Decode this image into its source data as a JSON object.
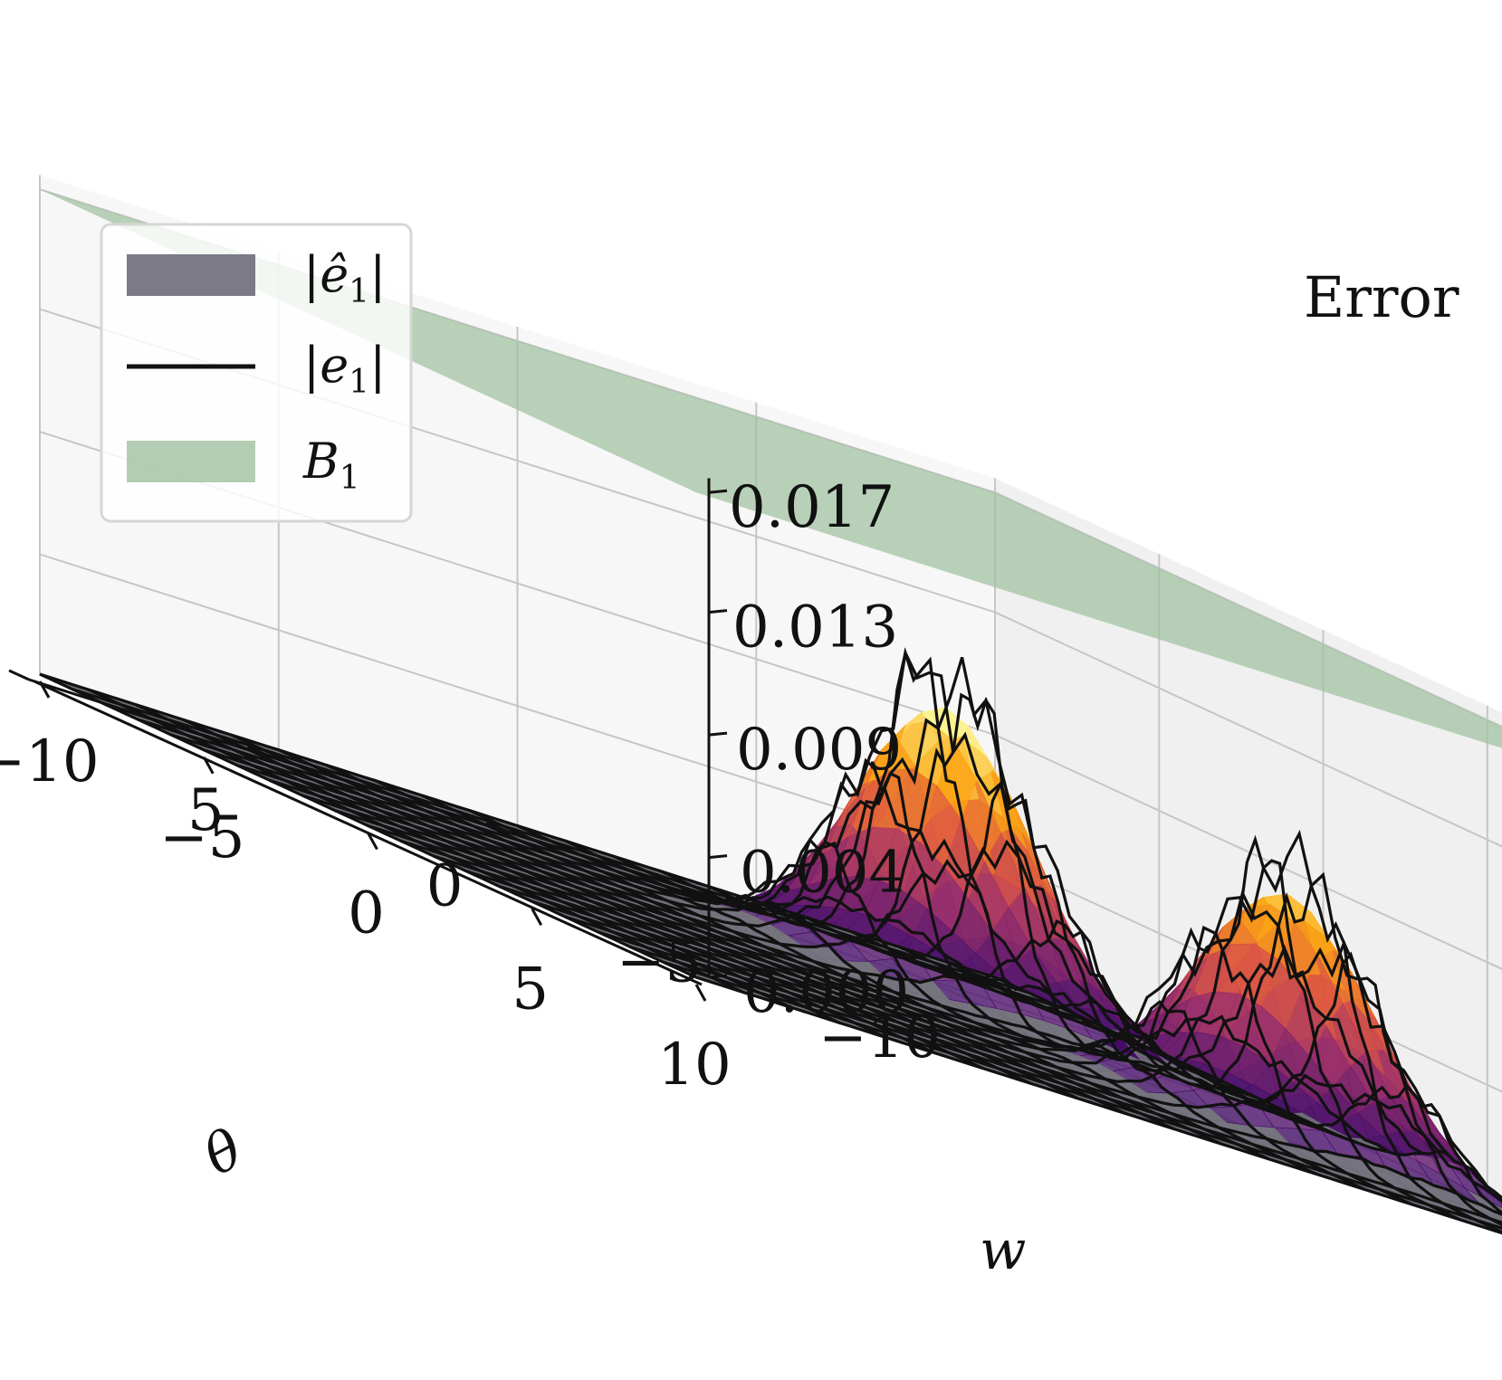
{
  "chart_data": {
    "type": "surface3d",
    "x_axis": {
      "label": "w",
      "ticks": [
        "−10",
        "−5",
        "0",
        "5",
        "10"
      ],
      "range": [
        -10,
        10
      ]
    },
    "y_axis": {
      "label": "θ",
      "ticks": [
        "−10",
        "−5",
        "0",
        "5",
        "10"
      ],
      "range": [
        -10,
        10
      ]
    },
    "z_axis": {
      "label": "Error",
      "ticks": [
        "0.000",
        "0.004",
        "0.009",
        "0.013",
        "0.017"
      ],
      "range": [
        0,
        0.0175
      ]
    },
    "grid": true,
    "legend": {
      "placement": "top-left",
      "entries": [
        {
          "label_main": "|ê",
          "label_sub": "1",
          "label_end": "|",
          "kind": "patch",
          "color": "#7c7a86"
        },
        {
          "label_main": "|e",
          "label_sub": "1",
          "label_end": "|",
          "kind": "line",
          "color": "#111111"
        },
        {
          "label_main": "B",
          "label_sub": "1",
          "label_end": "",
          "kind": "patch",
          "color": "#9fc09f"
        }
      ]
    },
    "series": [
      {
        "name": "|ê1|",
        "kind": "surface",
        "colormap": "inferno",
        "peaks": [
          {
            "w": -3.5,
            "theta": -4.5,
            "height": 0.01
          },
          {
            "w": 4.0,
            "theta": -6.5,
            "height": 0.0085
          }
        ]
      },
      {
        "name": "|e1|",
        "kind": "wireframe",
        "color": "#111111",
        "max": 0.0112
      },
      {
        "name": "B1",
        "kind": "plane",
        "color": "#9fc09f",
        "value": 0.017
      }
    ]
  }
}
